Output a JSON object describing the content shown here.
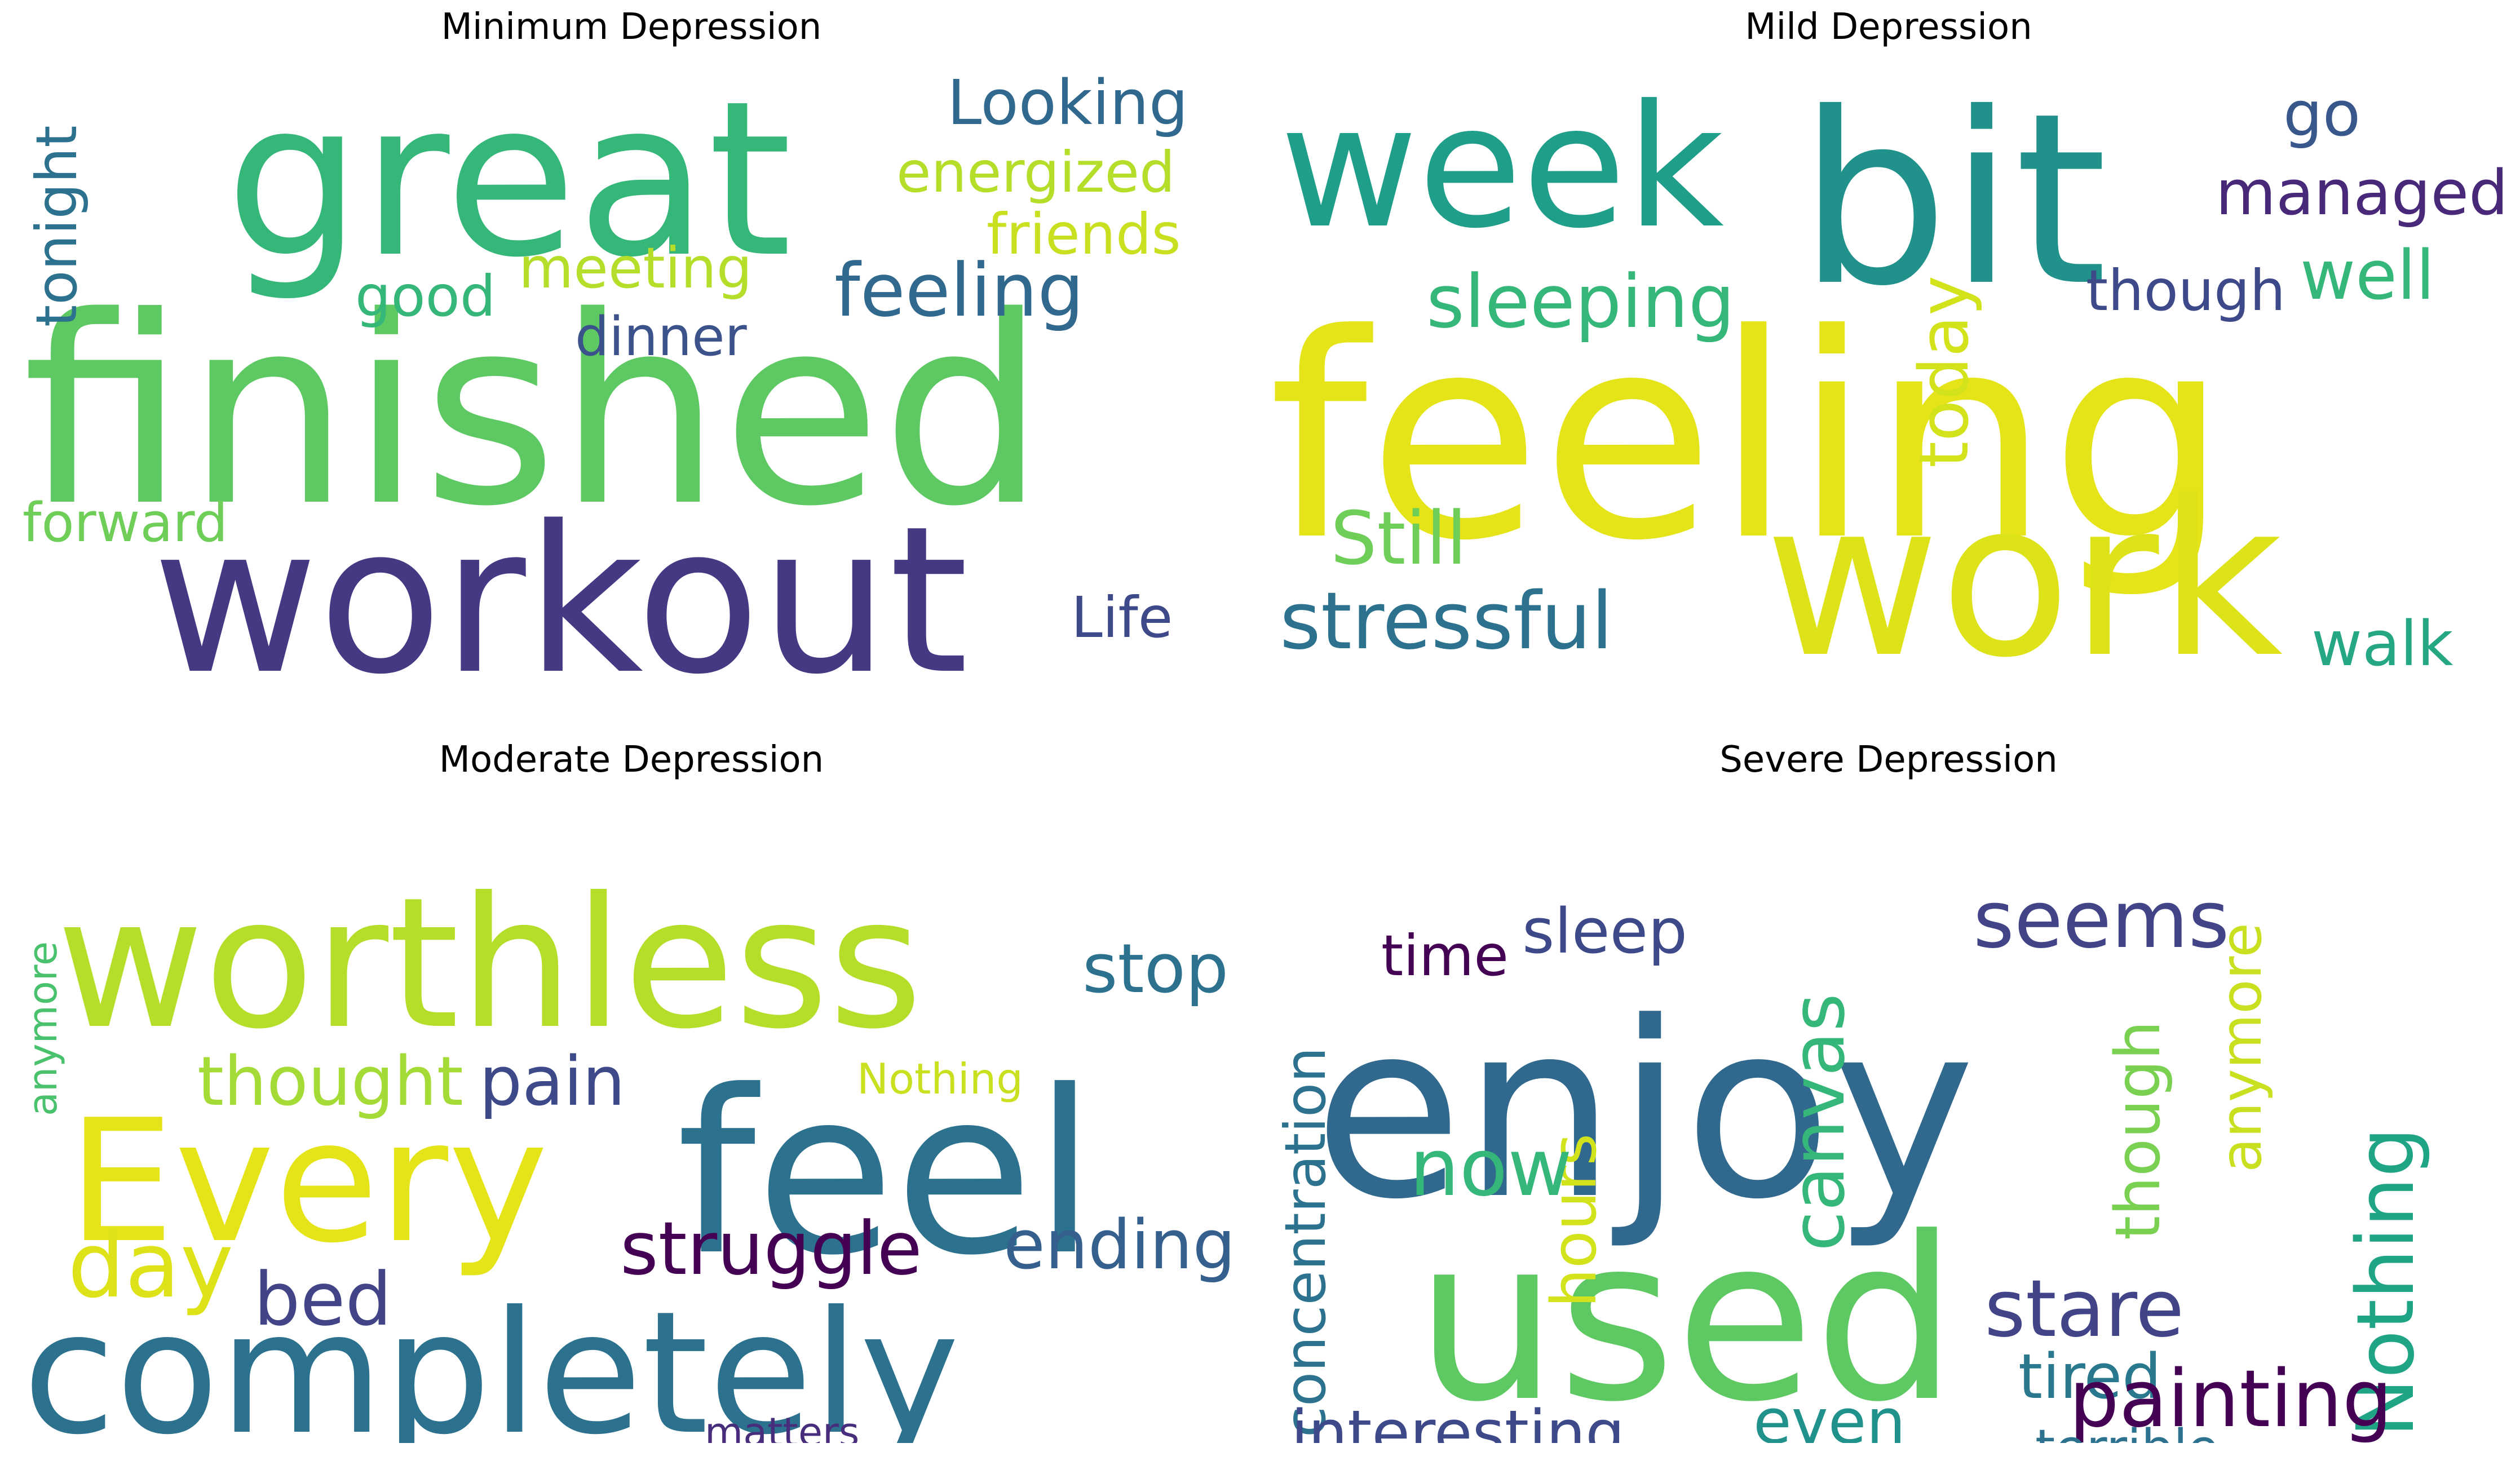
{
  "panels": [
    {
      "title": "Minimum Depression",
      "words": [
        {
          "text": "finished",
          "color": "#5ec962"
        },
        {
          "text": "great",
          "color": "#35b779"
        },
        {
          "text": "workout",
          "color": "#443983"
        },
        {
          "text": "feeling",
          "color": "#31688e"
        },
        {
          "text": "Looking",
          "color": "#31688e"
        },
        {
          "text": "energized",
          "color": "#b5de2b"
        },
        {
          "text": "friends",
          "color": "#c8e020"
        },
        {
          "text": "meeting",
          "color": "#b5de2b"
        },
        {
          "text": "good",
          "color": "#35b779"
        },
        {
          "text": "dinner",
          "color": "#3b528b"
        },
        {
          "text": "tonight",
          "color": "#2c728e"
        },
        {
          "text": "forward",
          "color": "#6ece58"
        },
        {
          "text": "Life",
          "color": "#3e4989"
        }
      ]
    },
    {
      "title": "Mild Depression",
      "words": [
        {
          "text": "feeling",
          "color": "#e5e419"
        },
        {
          "text": "bit",
          "color": "#21918c"
        },
        {
          "text": "week",
          "color": "#1f9e89"
        },
        {
          "text": "work",
          "color": "#dde318"
        },
        {
          "text": "stressful",
          "color": "#2c728e"
        },
        {
          "text": "sleeping",
          "color": "#35b779"
        },
        {
          "text": "Still",
          "color": "#6ece58"
        },
        {
          "text": "today",
          "color": "#d2e21b"
        },
        {
          "text": "though",
          "color": "#3e4989"
        },
        {
          "text": "go",
          "color": "#38588c"
        },
        {
          "text": "managed",
          "color": "#482878"
        },
        {
          "text": "well",
          "color": "#35b779"
        },
        {
          "text": "walk",
          "color": "#26a784"
        }
      ]
    },
    {
      "title": "Moderate Depression",
      "words": [
        {
          "text": "worthless",
          "color": "#b5de2b"
        },
        {
          "text": "Every",
          "color": "#e5e419"
        },
        {
          "text": "feel",
          "color": "#2c728e"
        },
        {
          "text": "completely",
          "color": "#2c728e"
        },
        {
          "text": "thought",
          "color": "#a5db36"
        },
        {
          "text": "pain",
          "color": "#3e4989"
        },
        {
          "text": "stop",
          "color": "#2c728e"
        },
        {
          "text": "Nothing",
          "color": "#c8e020"
        },
        {
          "text": "anymore",
          "color": "#4ac16d"
        },
        {
          "text": "day",
          "color": "#dde318"
        },
        {
          "text": "bed",
          "color": "#414487"
        },
        {
          "text": "struggle",
          "color": "#440154"
        },
        {
          "text": "ending",
          "color": "#355f8d"
        },
        {
          "text": "matters",
          "color": "#472d7b"
        }
      ]
    },
    {
      "title": "Severe Depression",
      "words": [
        {
          "text": "enjoy",
          "color": "#31688e"
        },
        {
          "text": "used",
          "color": "#5ec962"
        },
        {
          "text": "time",
          "color": "#440154"
        },
        {
          "text": "sleep",
          "color": "#3e4989"
        },
        {
          "text": "seems",
          "color": "#414487"
        },
        {
          "text": "concentration",
          "color": "#2c728e"
        },
        {
          "text": "canvas",
          "color": "#35b779"
        },
        {
          "text": "hours",
          "color": "#d2e21b"
        },
        {
          "text": "now",
          "color": "#35b779"
        },
        {
          "text": "though",
          "color": "#7ad151"
        },
        {
          "text": "anymore",
          "color": "#c8e020"
        },
        {
          "text": "Nothing",
          "color": "#20a486"
        },
        {
          "text": "stare",
          "color": "#414487"
        },
        {
          "text": "tired",
          "color": "#2a788e"
        },
        {
          "text": "painting",
          "color": "#440154"
        },
        {
          "text": "interesting",
          "color": "#3e4989"
        },
        {
          "text": "even",
          "color": "#21918c"
        },
        {
          "text": "terrible",
          "color": "#2c728e"
        }
      ]
    }
  ]
}
